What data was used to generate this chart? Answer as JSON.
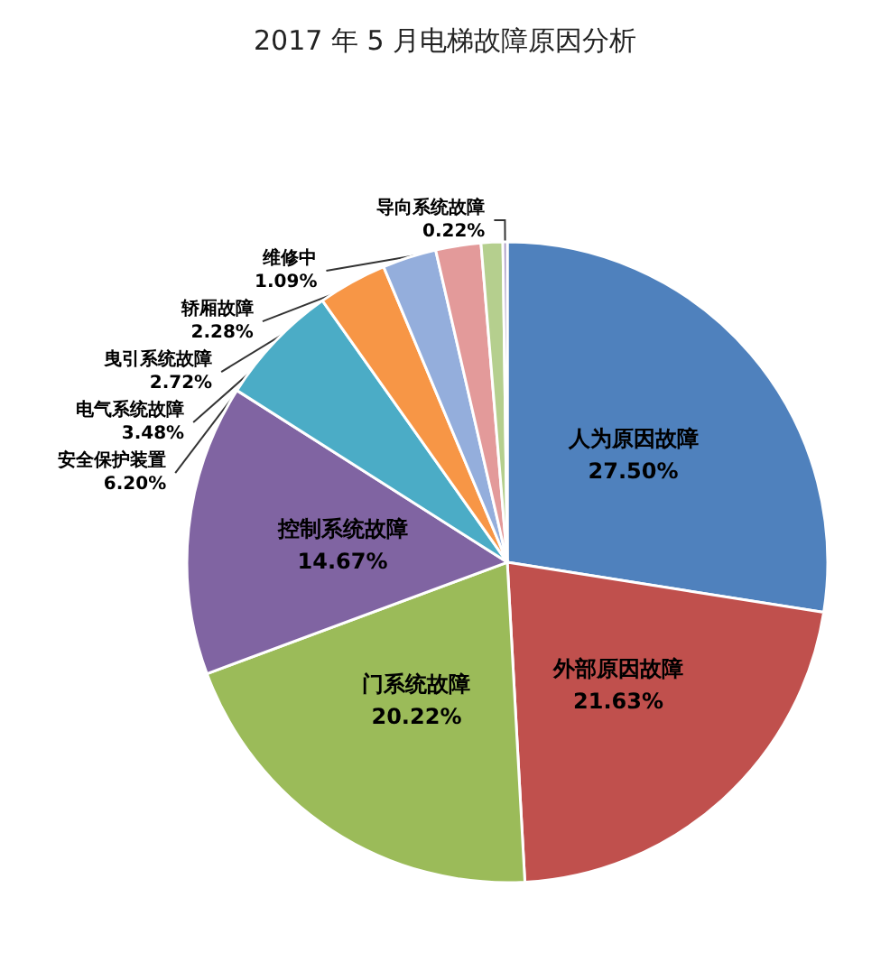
{
  "chart_data": {
    "type": "pie",
    "title": "2017 年 5 月电梯故障原因分析",
    "categories": [
      "人为原因故障",
      "外部原因故障",
      "门系统故障",
      "控制系统故障",
      "安全保护装置",
      "电气系统故障",
      "曳引系统故障",
      "轿厢故障",
      "维修中",
      "导向系统故障"
    ],
    "values": [
      27.5,
      21.63,
      20.22,
      14.67,
      6.2,
      3.48,
      2.72,
      2.28,
      1.09,
      0.22
    ],
    "value_labels": [
      "27.50%",
      "21.63%",
      "20.22%",
      "14.67%",
      "6.20%",
      "3.48%",
      "2.72%",
      "2.28%",
      "1.09%",
      "0.22%"
    ],
    "colors": [
      "#4f81bd",
      "#c0504d",
      "#9bbb59",
      "#8064a2",
      "#4bacc6",
      "#f79646",
      "#94aedc",
      "#e39a9a",
      "#b5cf8e",
      "#a99bc4"
    ],
    "legend": false
  }
}
